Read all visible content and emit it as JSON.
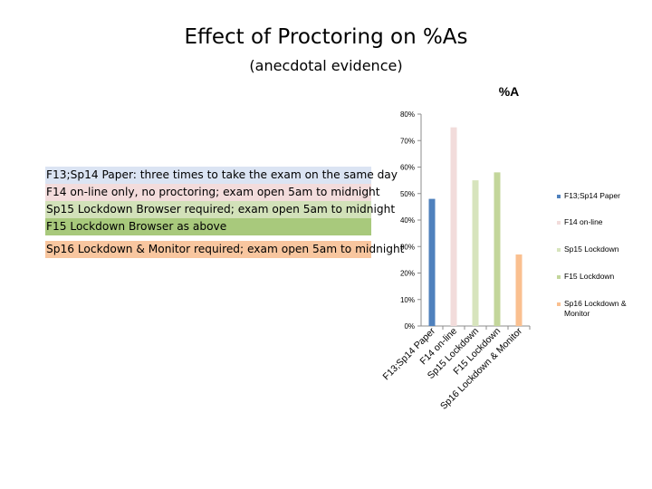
{
  "slide": {
    "title": "Effect of Proctoring on %As",
    "subtitle": "(anecdotal evidence)"
  },
  "notes": [
    {
      "text": "F13;Sp14 Paper: three times to take the exam on the same day",
      "color": "#dbe4f3"
    },
    {
      "text": "F14 on-line only, no proctoring; exam open 5am to midnight",
      "color": "#f3dcdc"
    },
    {
      "text": "Sp15 Lockdown Browser required; exam open 5am to midnight",
      "color": "#d2e1b9"
    },
    {
      "text": "F15 Lockdown Browser as above",
      "color": "#a8c97c"
    },
    {
      "text": "Sp16 Lockdown & Monitor required; exam open 5am to midnight",
      "color": "#f8c69f"
    }
  ],
  "chart_data": {
    "type": "bar",
    "title": "%A",
    "categories": [
      "F13;Sp14 Paper",
      "F14 on-line",
      "Sp15 Lockdown",
      "F15 Lockdown",
      "Sp16 Lockdown & Monitor"
    ],
    "values": [
      48,
      75,
      55,
      58,
      27
    ],
    "colors": [
      "#4f81bd",
      "#f2dcdb",
      "#d7e4bd",
      "#c3d69b",
      "#fac090"
    ],
    "y_ticks": [
      "0%",
      "10%",
      "20%",
      "30%",
      "40%",
      "50%",
      "60%",
      "70%",
      "80%"
    ],
    "y_tick_values": [
      0,
      10,
      20,
      30,
      40,
      50,
      60,
      70,
      80
    ],
    "ylim": [
      0,
      80
    ],
    "legend": [
      "F13;Sp14 Paper",
      "F14 on-line",
      "Sp15 Lockdown",
      "F15 Lockdown",
      "Sp16 Lockdown & Monitor"
    ],
    "legend_position": "right",
    "grid": false
  }
}
